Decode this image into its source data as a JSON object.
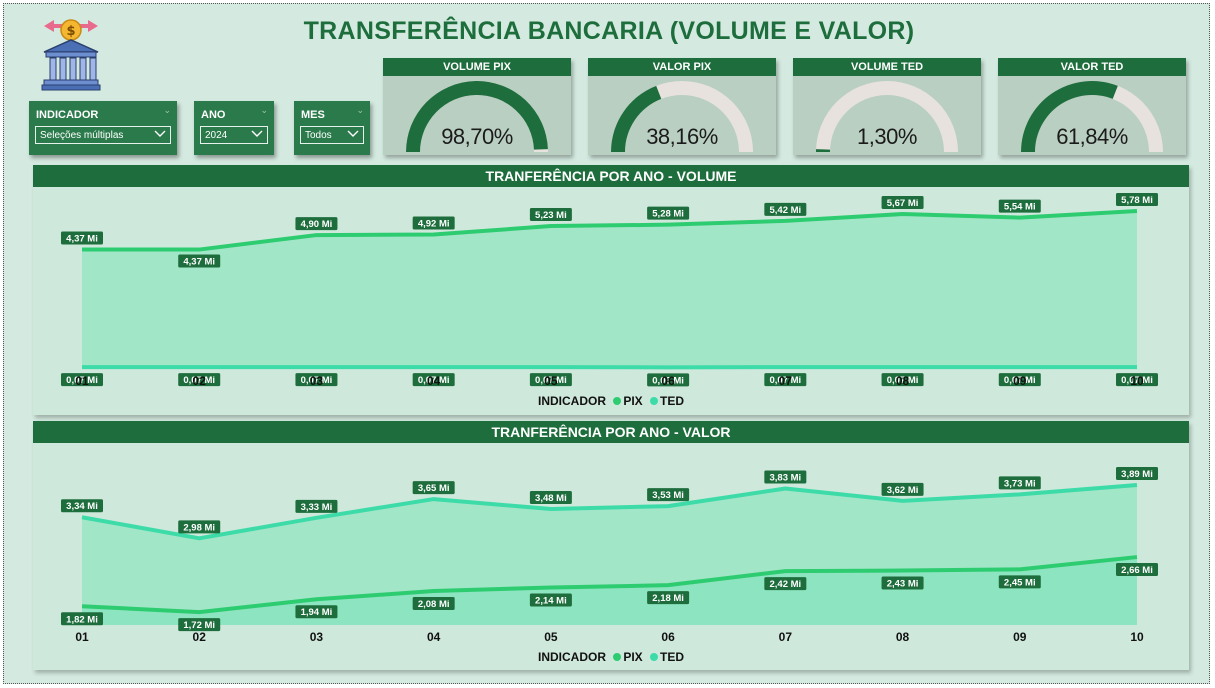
{
  "title": "TRANSFERÊNCIA BANCARIA (VOLUME E VALOR)",
  "logo_icon": "bank-money-transfer-icon",
  "filters": [
    {
      "label": "INDICADOR",
      "value": "Seleções múltiplas"
    },
    {
      "label": "ANO",
      "value": "2024"
    },
    {
      "label": "MES",
      "value": "Todos"
    }
  ],
  "kpis": [
    {
      "label": "VOLUME PIX",
      "value_text": "98,70%",
      "value": 0.987
    },
    {
      "label": "VALOR PIX",
      "value_text": "38,16%",
      "value": 0.3816
    },
    {
      "label": "VOLUME TED",
      "value_text": "1,30%",
      "value": 0.013
    },
    {
      "label": "VALOR TED",
      "value_text": "61,84%",
      "value": 0.6184
    }
  ],
  "colors": {
    "header": "#1e6e3d",
    "pix": "#2ecc71",
    "ted": "#3ddba8",
    "gauge_track": "#e7e2dd"
  },
  "chart_data": [
    {
      "type": "line",
      "title": "TRANFERÊNCIA POR ANO - VOLUME",
      "categories": [
        "01",
        "02",
        "03",
        "04",
        "05",
        "06",
        "07",
        "08",
        "09",
        "10"
      ],
      "legend_title": "INDICADOR",
      "series": [
        {
          "name": "PIX",
          "values": [
            4.37,
            4.37,
            4.9,
            4.92,
            5.23,
            5.28,
            5.42,
            5.67,
            5.54,
            5.78
          ],
          "labels": [
            "4,37 Mi",
            "4,37 Mi",
            "4,90 Mi",
            "4,92 Mi",
            "5,23 Mi",
            "5,28 Mi",
            "5,42 Mi",
            "5,67 Mi",
            "5,54 Mi",
            "5,78 Mi"
          ]
        },
        {
          "name": "TED",
          "values": [
            0.07,
            0.07,
            0.07,
            0.07,
            0.07,
            0.06,
            0.07,
            0.07,
            0.07,
            0.07
          ],
          "labels": [
            "0,07 Mi",
            "0,07 Mi",
            "0,07 Mi",
            "0,07 Mi",
            "0,07 Mi",
            "0,06 Mi",
            "0,07 Mi",
            "0,07 Mi",
            "0,07 Mi",
            "0,07 Mi"
          ]
        }
      ],
      "ylim": [
        0,
        6
      ]
    },
    {
      "type": "line",
      "title": "TRANFERÊNCIA POR ANO - VALOR",
      "categories": [
        "01",
        "02",
        "03",
        "04",
        "05",
        "06",
        "07",
        "08",
        "09",
        "10"
      ],
      "legend_title": "INDICADOR",
      "series": [
        {
          "name": "PIX",
          "values": [
            1.82,
            1.72,
            1.94,
            2.08,
            2.14,
            2.18,
            2.42,
            2.43,
            2.45,
            2.66
          ],
          "labels": [
            "1,82 Mi",
            "1,72 Mi",
            "1,94 Mi",
            "2,08 Mi",
            "2,14 Mi",
            "2,18 Mi",
            "2,42 Mi",
            "2,43 Mi",
            "2,45 Mi",
            "2,66 Mi"
          ]
        },
        {
          "name": "TED",
          "values": [
            3.34,
            2.98,
            3.33,
            3.65,
            3.48,
            3.53,
            3.83,
            3.62,
            3.73,
            3.89
          ],
          "labels": [
            "3,34 Mi",
            "2,98 Mi",
            "3,33 Mi",
            "3,65 Mi",
            "3,48 Mi",
            "3,53 Mi",
            "3,83 Mi",
            "3,62 Mi",
            "3,73 Mi",
            "3,89 Mi"
          ]
        }
      ],
      "ylim": [
        1.5,
        4.3
      ]
    }
  ]
}
